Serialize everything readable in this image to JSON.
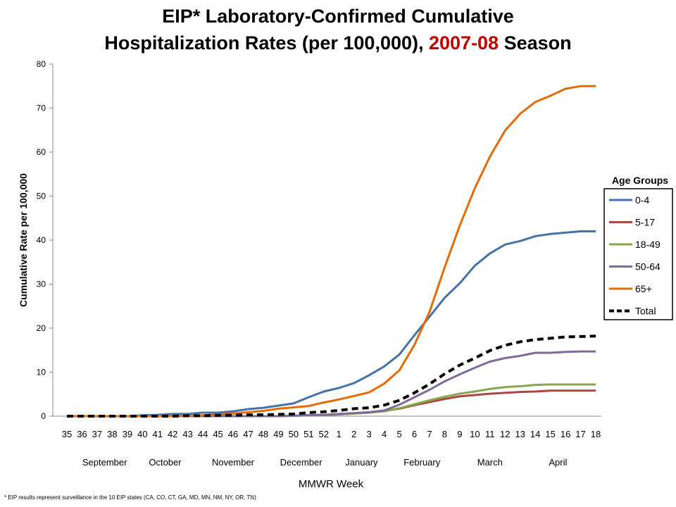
{
  "chart_data": {
    "type": "line",
    "title_line1": "EIP* Laboratory-Confirmed Cumulative",
    "title_line2_pre": "Hospitalization Rates (per 100,000), ",
    "title_season": "2007-08",
    "title_line2_post": " Season",
    "xlabel": "MMWR Week",
    "ylabel": "Cumulative Rate per 100,000",
    "ylim": [
      0,
      80
    ],
    "yticks": [
      0,
      10,
      20,
      30,
      40,
      50,
      60,
      70,
      80
    ],
    "x": [
      "35",
      "36",
      "37",
      "38",
      "39",
      "40",
      "41",
      "42",
      "43",
      "44",
      "45",
      "46",
      "47",
      "48",
      "49",
      "50",
      "51",
      "52",
      "1",
      "2",
      "3",
      "4",
      "5",
      "6",
      "7",
      "8",
      "9",
      "10",
      "11",
      "12",
      "13",
      "14",
      "15",
      "16",
      "17",
      "18"
    ],
    "months": [
      {
        "label": "September",
        "at": 2.5
      },
      {
        "label": "October",
        "at": 6.5
      },
      {
        "label": "November",
        "at": 11
      },
      {
        "label": "December",
        "at": 15.5
      },
      {
        "label": "January",
        "at": 19.5
      },
      {
        "label": "February",
        "at": 23.5
      },
      {
        "label": "March",
        "at": 28
      },
      {
        "label": "April",
        "at": 32.5
      }
    ],
    "legend_title": "Age Groups",
    "legend_position": "right",
    "series": [
      {
        "name": "0-4",
        "color": "#4572a7",
        "dashed": false,
        "values": [
          0,
          0,
          0,
          0,
          0,
          0.2,
          0.3,
          0.5,
          0.5,
          0.8,
          0.8,
          1.1,
          1.6,
          1.9,
          2.4,
          2.9,
          4.3,
          5.6,
          6.4,
          7.5,
          9.3,
          11.3,
          14,
          18.4,
          22.6,
          26.9,
          30.2,
          34.2,
          37,
          39,
          39.8,
          40.9,
          41.4,
          41.7,
          42,
          42
        ]
      },
      {
        "name": "5-17",
        "color": "#aa4643",
        "dashed": false,
        "values": [
          0,
          0,
          0,
          0,
          0,
          0,
          0,
          0,
          0,
          0,
          0,
          0,
          0,
          0,
          0,
          0.1,
          0.2,
          0.3,
          0.4,
          0.6,
          0.8,
          1.2,
          1.7,
          2.5,
          3.2,
          3.9,
          4.5,
          4.8,
          5.1,
          5.3,
          5.5,
          5.6,
          5.8,
          5.8,
          5.8,
          5.8
        ]
      },
      {
        "name": "18-49",
        "color": "#89a54e",
        "dashed": false,
        "values": [
          0,
          0,
          0,
          0,
          0,
          0,
          0,
          0,
          0,
          0,
          0,
          0,
          0,
          0,
          0,
          0.1,
          0.2,
          0.3,
          0.4,
          0.6,
          0.8,
          1.1,
          1.8,
          2.7,
          3.6,
          4.4,
          5.1,
          5.6,
          6.2,
          6.6,
          6.8,
          7.1,
          7.2,
          7.2,
          7.2,
          7.2
        ]
      },
      {
        "name": "50-64",
        "color": "#80699b",
        "dashed": false,
        "values": [
          0,
          0,
          0,
          0,
          0,
          0,
          0,
          0,
          0,
          0,
          0,
          0,
          0,
          0,
          0,
          0.1,
          0.2,
          0.3,
          0.5,
          0.7,
          0.9,
          1.3,
          2.6,
          4.3,
          6.0,
          7.9,
          9.5,
          11,
          12.4,
          13.2,
          13.7,
          14.4,
          14.4,
          14.6,
          14.7,
          14.7
        ]
      },
      {
        "name": "65+",
        "color": "#e36c09",
        "dashed": false,
        "values": [
          0,
          0,
          0,
          0,
          0,
          0,
          0,
          0,
          0,
          0.2,
          0.4,
          0.6,
          0.9,
          1.2,
          1.7,
          2.0,
          2.3,
          3.1,
          3.8,
          4.6,
          5.4,
          7.4,
          10.4,
          16.2,
          23.7,
          33.8,
          43.3,
          51.8,
          59,
          64.9,
          68.7,
          71.4,
          72.8,
          74.4,
          75,
          75
        ]
      },
      {
        "name": "Total",
        "color": "#000000",
        "dashed": true,
        "values": [
          0,
          0,
          0,
          0,
          0,
          0,
          0,
          0,
          0.1,
          0.1,
          0.2,
          0.2,
          0.3,
          0.3,
          0.4,
          0.5,
          0.8,
          1.0,
          1.3,
          1.7,
          1.9,
          2.5,
          3.6,
          5.3,
          7.3,
          9.6,
          11.6,
          13.2,
          14.9,
          16.1,
          16.9,
          17.4,
          17.7,
          18,
          18.1,
          18.2
        ]
      }
    ],
    "footnote": "* EIP results represent surveillance in the 10 EIP states (CA, CO, CT, GA, MD, MN, NM, NY, OR, TN)"
  }
}
